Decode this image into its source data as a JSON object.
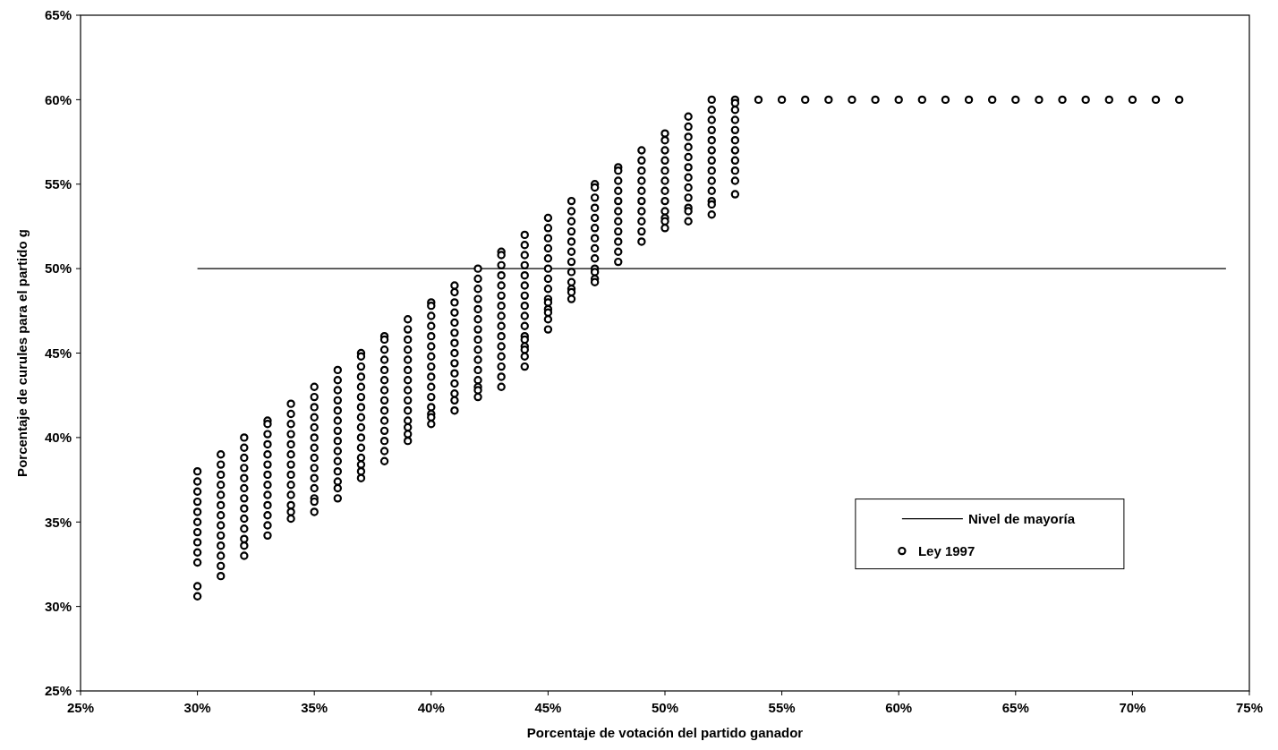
{
  "chart_data": {
    "type": "scatter",
    "xlabel": "Porcentaje de votación del partido ganador",
    "ylabel": "Porcentaje de curules para el partido g",
    "xlim": [
      25,
      75
    ],
    "ylim": [
      25,
      65
    ],
    "xticks": [
      {
        "value": 25,
        "label": "25%"
      },
      {
        "value": 30,
        "label": "30%"
      },
      {
        "value": 35,
        "label": "35%"
      },
      {
        "value": 40,
        "label": "40%"
      },
      {
        "value": 45,
        "label": "45%"
      },
      {
        "value": 50,
        "label": "50%"
      },
      {
        "value": 55,
        "label": "55%"
      },
      {
        "value": 60,
        "label": "60%"
      },
      {
        "value": 65,
        "label": "65%"
      },
      {
        "value": 70,
        "label": "70%"
      },
      {
        "value": 75,
        "label": "75%"
      }
    ],
    "yticks": [
      {
        "value": 25,
        "label": "25%"
      },
      {
        "value": 30,
        "label": "30%"
      },
      {
        "value": 35,
        "label": "35%"
      },
      {
        "value": 40,
        "label": "40%"
      },
      {
        "value": 45,
        "label": "45%"
      },
      {
        "value": 50,
        "label": "50%"
      },
      {
        "value": 55,
        "label": "55%"
      },
      {
        "value": 60,
        "label": "60%"
      },
      {
        "value": 65,
        "label": "65%"
      }
    ],
    "grid": false,
    "legend": "bottom right",
    "series": [
      {
        "name": "Nivel de mayoría",
        "type": "line",
        "color": "#000000",
        "line_style": "solid",
        "x": [
          30,
          74
        ],
        "values": [
          50,
          50
        ]
      },
      {
        "name": "Ley 1997",
        "marker": "circle",
        "color": "#000000",
        "x": [
          30,
          30,
          30,
          30,
          30,
          30,
          30,
          30,
          30,
          30,
          30,
          30,
          31,
          31,
          31,
          31,
          31,
          31,
          31,
          31,
          31,
          31,
          31,
          31,
          31,
          32,
          32,
          32,
          32,
          32,
          32,
          32,
          32,
          32,
          32,
          32,
          32,
          32,
          33,
          33,
          33,
          33,
          33,
          33,
          33,
          33,
          33,
          33,
          33,
          33,
          33,
          34,
          34,
          34,
          34,
          34,
          34,
          34,
          34,
          34,
          34,
          34,
          34,
          34,
          35,
          35,
          35,
          35,
          35,
          35,
          35,
          35,
          35,
          35,
          35,
          35,
          35,
          35,
          36,
          36,
          36,
          36,
          36,
          36,
          36,
          36,
          36,
          36,
          36,
          36,
          36,
          36,
          37,
          37,
          37,
          37,
          37,
          37,
          37,
          37,
          37,
          37,
          37,
          37,
          37,
          37,
          37,
          38,
          38,
          38,
          38,
          38,
          38,
          38,
          38,
          38,
          38,
          38,
          38,
          38,
          38,
          39,
          39,
          39,
          39,
          39,
          39,
          39,
          39,
          39,
          39,
          39,
          39,
          39,
          39,
          40,
          40,
          40,
          40,
          40,
          40,
          40,
          40,
          40,
          40,
          40,
          40,
          40,
          40,
          40,
          41,
          41,
          41,
          41,
          41,
          41,
          41,
          41,
          41,
          41,
          41,
          41,
          41,
          41,
          42,
          42,
          42,
          42,
          42,
          42,
          42,
          42,
          42,
          42,
          42,
          42,
          42,
          42,
          42,
          43,
          43,
          43,
          43,
          43,
          43,
          43,
          43,
          43,
          43,
          43,
          43,
          43,
          43,
          43,
          44,
          44,
          44,
          44,
          44,
          44,
          44,
          44,
          44,
          44,
          44,
          44,
          44,
          44,
          44,
          44,
          45,
          45,
          45,
          45,
          45,
          45,
          45,
          45,
          45,
          45,
          45,
          45,
          45,
          45,
          46,
          46,
          46,
          46,
          46,
          46,
          46,
          46,
          46,
          46,
          46,
          46,
          47,
          47,
          47,
          47,
          47,
          47,
          47,
          47,
          47,
          47,
          47,
          47,
          47,
          48,
          48,
          48,
          48,
          48,
          48,
          48,
          48,
          48,
          48,
          48,
          49,
          49,
          49,
          49,
          49,
          49,
          49,
          49,
          49,
          49,
          50,
          50,
          50,
          50,
          50,
          50,
          50,
          50,
          50,
          50,
          50,
          50,
          51,
          51,
          51,
          51,
          51,
          51,
          51,
          51,
          51,
          51,
          51,
          51,
          52,
          52,
          52,
          52,
          52,
          52,
          52,
          52,
          52,
          52,
          52,
          52,
          52,
          53,
          53,
          53,
          53,
          53,
          53,
          53,
          53,
          53,
          53,
          53,
          54,
          55,
          56,
          57,
          58,
          59,
          60,
          61,
          62,
          63,
          64,
          65,
          66,
          67,
          68,
          69,
          70,
          71,
          72
        ],
        "values": [
          38,
          37.4,
          36.8,
          36.2,
          35.6,
          35,
          34.4,
          33.8,
          33.2,
          32.6,
          31.2,
          30.6,
          39,
          38.4,
          37.8,
          37.2,
          36.6,
          36,
          35.4,
          34.8,
          34.2,
          33.6,
          33,
          32.4,
          31.8,
          40,
          39.4,
          38.8,
          38.2,
          37.6,
          37,
          36.4,
          35.8,
          35.2,
          34.6,
          34,
          33.6,
          33,
          41,
          40.8,
          40.2,
          39.6,
          39,
          38.4,
          37.8,
          37.2,
          36.6,
          36,
          35.4,
          34.8,
          34.2,
          42,
          41.4,
          40.8,
          40.2,
          39.6,
          39,
          38.4,
          37.8,
          37.2,
          36.6,
          36,
          35.6,
          35.2,
          43,
          42.4,
          41.8,
          41.2,
          40.6,
          40,
          39.4,
          38.8,
          38.2,
          37.6,
          37,
          36.4,
          36.2,
          35.6,
          44,
          43.4,
          42.8,
          42.2,
          41.6,
          41,
          40.4,
          39.8,
          39.2,
          38.6,
          38,
          37.4,
          37,
          36.4,
          45,
          44.8,
          44.2,
          43.6,
          43,
          42.4,
          41.8,
          41.2,
          40.6,
          40,
          39.4,
          38.8,
          38.4,
          38,
          37.6,
          46,
          45.8,
          45.2,
          44.6,
          44,
          43.4,
          42.8,
          42.2,
          41.6,
          41,
          40.4,
          39.8,
          39.2,
          38.6,
          47,
          46.4,
          45.8,
          45.2,
          44.6,
          44,
          43.4,
          42.8,
          42.2,
          41.6,
          41,
          40.6,
          40.2,
          39.8,
          48,
          47.8,
          47.2,
          46.6,
          46,
          45.4,
          44.8,
          44.2,
          43.6,
          43,
          42.4,
          41.8,
          41.4,
          41.2,
          40.8,
          49,
          48.6,
          48,
          47.4,
          46.8,
          46.2,
          45.6,
          45,
          44.4,
          43.8,
          43.2,
          42.6,
          42.2,
          41.6,
          50,
          49.4,
          48.8,
          48.2,
          47.6,
          47,
          46.4,
          45.8,
          45.2,
          44.6,
          44,
          43.4,
          43,
          42.8,
          42.4,
          51,
          50.8,
          50.2,
          49.6,
          49,
          48.4,
          47.8,
          47.2,
          46.6,
          46,
          45.4,
          44.8,
          44.2,
          43.6,
          43,
          52,
          51.4,
          50.8,
          50.2,
          49.6,
          49,
          48.4,
          47.8,
          47.2,
          46.6,
          46,
          45.8,
          45.4,
          45.2,
          44.8,
          44.2,
          53,
          52.4,
          51.8,
          51.2,
          50.6,
          50,
          49.4,
          48.8,
          48.2,
          48,
          47.6,
          47.4,
          47,
          46.4,
          54,
          53.4,
          52.8,
          52.2,
          51.6,
          51,
          50.4,
          49.8,
          49.2,
          48.8,
          48.6,
          48.2,
          55,
          54.8,
          54.2,
          53.6,
          53,
          52.4,
          51.8,
          51.2,
          50.6,
          50,
          49.8,
          49.4,
          49.2,
          56,
          55.8,
          55.2,
          54.6,
          54,
          53.4,
          52.8,
          52.2,
          51.6,
          51,
          50.4,
          57,
          56.4,
          55.8,
          55.2,
          54.6,
          54,
          53.4,
          52.8,
          52.2,
          51.6,
          58,
          57.6,
          57,
          56.4,
          55.8,
          55.2,
          54.6,
          54,
          53.4,
          53,
          52.8,
          52.4,
          59,
          58.4,
          57.8,
          57.2,
          56.6,
          56,
          55.4,
          54.8,
          54.2,
          53.6,
          53.4,
          52.8,
          60,
          59.4,
          58.8,
          58.2,
          57.6,
          57,
          56.4,
          55.8,
          55.2,
          54.6,
          54,
          53.8,
          53.2,
          60,
          59.8,
          59.4,
          58.8,
          58.2,
          57.6,
          57,
          56.4,
          55.8,
          55.2,
          54.4,
          60,
          60,
          60,
          60,
          60,
          60,
          60,
          60,
          60,
          60,
          60,
          60,
          60,
          60,
          60,
          60,
          60,
          60,
          60
        ]
      }
    ]
  }
}
